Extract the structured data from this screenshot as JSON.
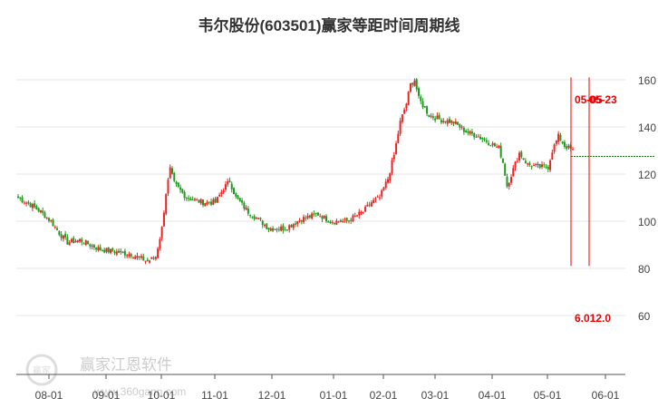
{
  "title": "韦尔股份(603501)赢家等距时间周期线",
  "colors": {
    "up": "#ee2222",
    "down": "#1f9a1f",
    "cycle_line": "#ee0000",
    "grid": "#e6e6e6",
    "axis": "#555555"
  },
  "watermark": {
    "name": "赢家江恩软件",
    "url": "www.360gann.com",
    "logo_text": "赢家"
  },
  "chart_data": {
    "type": "candlestick",
    "title": "韦尔股份(603501)赢家等距时间周期线",
    "xlabel": "",
    "ylabel": "",
    "ylim": [
      60,
      165
    ],
    "y_ticks": [
      60,
      80,
      100,
      120,
      140,
      160
    ],
    "x_ticks": [
      "08-01",
      "09-01",
      "10-01",
      "11-01",
      "12-01",
      "01-01",
      "02-01",
      "03-01",
      "04-01",
      "05-01",
      "06-01"
    ],
    "grid": "horizontal",
    "cycle_lines": [
      {
        "label": "05-05",
        "low": 81,
        "high": 161
      },
      {
        "label": "05-23",
        "low": 81,
        "high": 161
      }
    ],
    "bottom_label": "6.012.0",
    "projection_line_value": 127.5,
    "anchors": [
      [
        0,
        110
      ],
      [
        6,
        107
      ],
      [
        11,
        104
      ],
      [
        16,
        100
      ],
      [
        20,
        95
      ],
      [
        24,
        91
      ],
      [
        30,
        92
      ],
      [
        40,
        88
      ],
      [
        55,
        86
      ],
      [
        63,
        83
      ],
      [
        67,
        85
      ],
      [
        70,
        97
      ],
      [
        72,
        112
      ],
      [
        74,
        122
      ],
      [
        76,
        116
      ],
      [
        82,
        110
      ],
      [
        90,
        108
      ],
      [
        96,
        108
      ],
      [
        100,
        114
      ],
      [
        103,
        117
      ],
      [
        106,
        110
      ],
      [
        112,
        104
      ],
      [
        118,
        100
      ],
      [
        122,
        97
      ],
      [
        130,
        97
      ],
      [
        138,
        101
      ],
      [
        146,
        103
      ],
      [
        152,
        100
      ],
      [
        160,
        100
      ],
      [
        168,
        104
      ],
      [
        172,
        108
      ],
      [
        176,
        110
      ],
      [
        180,
        118
      ],
      [
        183,
        128
      ],
      [
        186,
        142
      ],
      [
        189,
        150
      ],
      [
        191,
        158
      ],
      [
        193,
        160
      ],
      [
        195,
        152
      ],
      [
        200,
        145
      ],
      [
        206,
        143
      ],
      [
        212,
        142
      ],
      [
        218,
        138
      ],
      [
        224,
        136
      ],
      [
        230,
        133
      ],
      [
        234,
        131
      ],
      [
        236,
        125
      ],
      [
        238,
        115
      ],
      [
        241,
        122
      ],
      [
        244,
        129
      ],
      [
        248,
        124
      ],
      [
        254,
        123
      ],
      [
        258,
        123
      ],
      [
        260,
        130
      ],
      [
        263,
        136
      ],
      [
        266,
        132
      ],
      [
        270,
        130
      ]
    ]
  }
}
